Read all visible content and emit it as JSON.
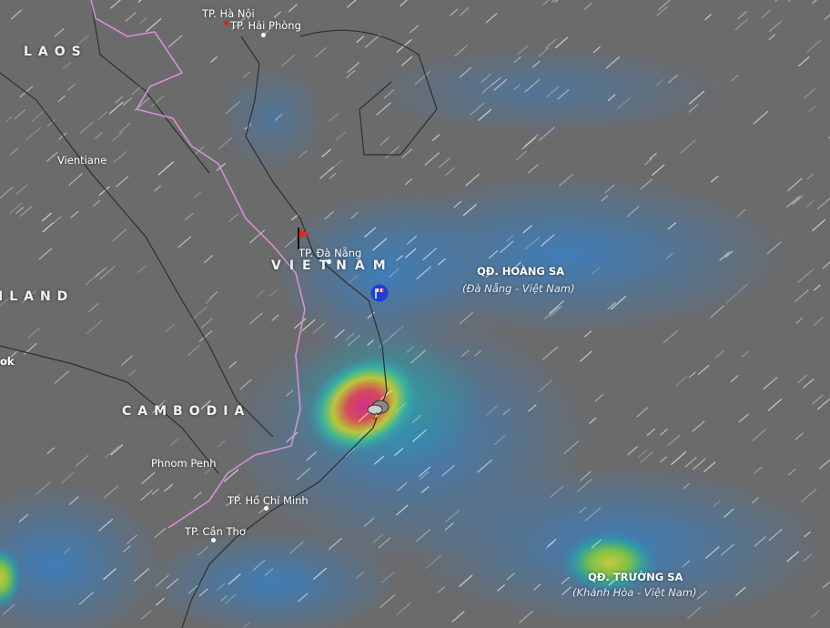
{
  "map": {
    "layer": "wind",
    "colors": {
      "land": "#6b6b6b",
      "border": "#d58fd8",
      "low": "#3a78b8",
      "mid": "#2aa3a0",
      "high": "#9ac83a",
      "peak": "#d43a8c"
    },
    "countries": {
      "laos": "LAOS",
      "thailand_partial": "ILAND",
      "cambodia": "CAMBODIA",
      "vietnam": "VIETNAM"
    },
    "cities": {
      "vientiane": "Vientiane",
      "bangkok_partial": "ok",
      "phnom_penh": "Phnom Penh",
      "hanoi": "TP. Hà Nội",
      "haiphong": "TP. Hải Phòng",
      "danang": "TP. Đà Nẵng",
      "hcm": "TP. Hồ Chí Minh",
      "cantho": "TP. Cần Thơ"
    },
    "archipelagos": {
      "hoangsa": {
        "name": "QĐ. HOÀNG SA",
        "sub": "(Đà Nẵng - Việt Nam)"
      },
      "truongsa": {
        "name": "QĐ. TRƯỜNG SA",
        "sub": "(Khánh Hòa - Việt Nam)"
      }
    },
    "markers": [
      "red-flag-icon",
      "windsock-icon",
      "thunderstorm-icon"
    ]
  }
}
